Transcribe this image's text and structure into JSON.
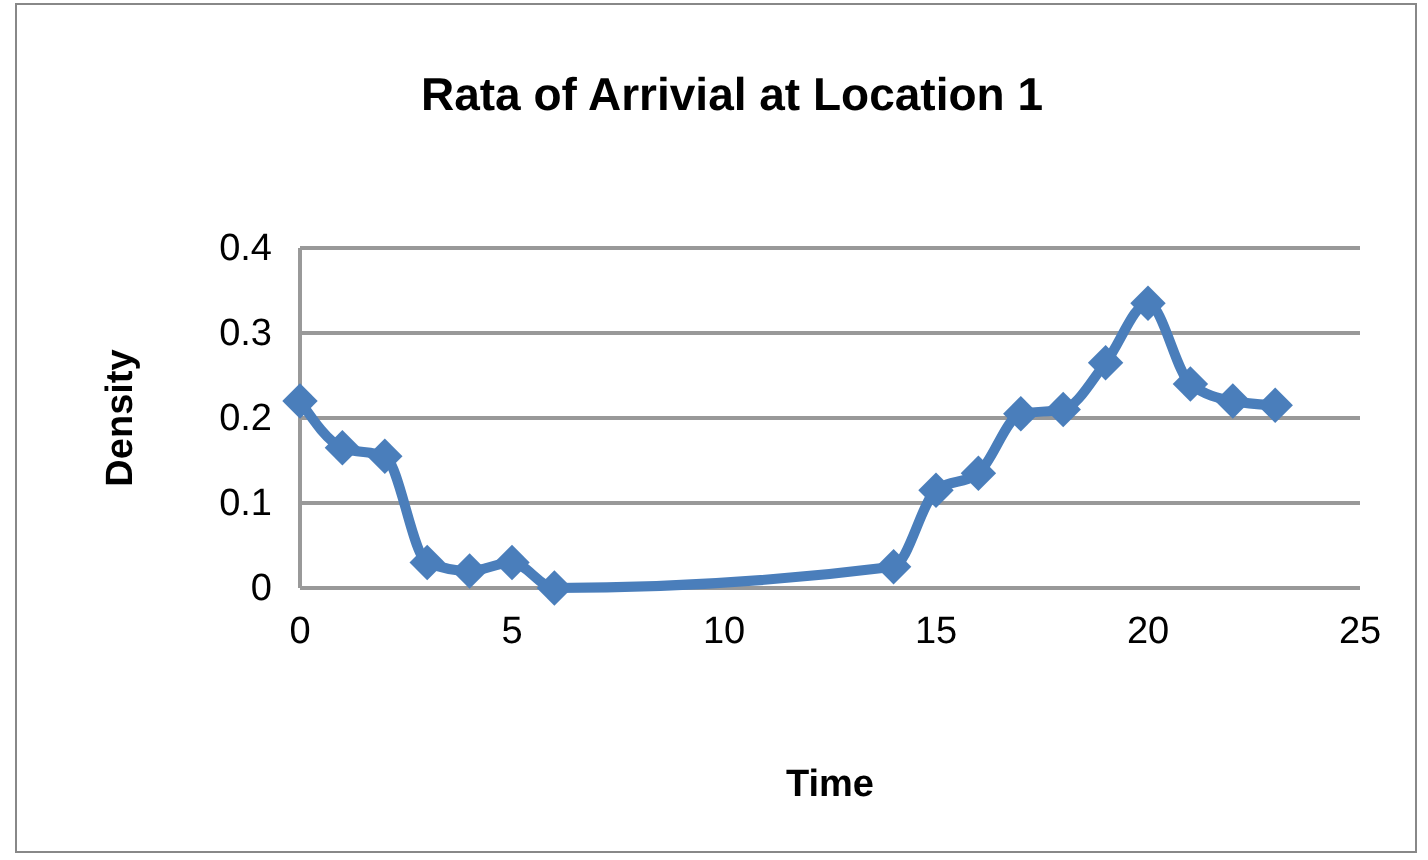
{
  "chart_data": {
    "type": "line",
    "title": "Rata of Arrivial at Location 1",
    "xlabel": "Time",
    "ylabel": "Density",
    "x": [
      0,
      1,
      2,
      3,
      4,
      5,
      6,
      14,
      15,
      16,
      17,
      18,
      19,
      20,
      21,
      22,
      23
    ],
    "series": [
      {
        "color": "#4a7ebb",
        "values": [
          0.22,
          0.165,
          0.155,
          0.03,
          0.02,
          0.03,
          0.0,
          0.025,
          0.115,
          0.135,
          0.205,
          0.21,
          0.265,
          0.335,
          0.24,
          0.22,
          0.215
        ]
      }
    ],
    "xlim": [
      0,
      25
    ],
    "xticks": [
      0,
      5,
      10,
      15,
      20,
      25
    ],
    "ylim": [
      0,
      0.4
    ],
    "yticks": [
      0,
      0.1,
      0.2,
      0.3,
      0.4
    ],
    "grid": "y",
    "marker": "diamond",
    "line_style": "solid"
  }
}
